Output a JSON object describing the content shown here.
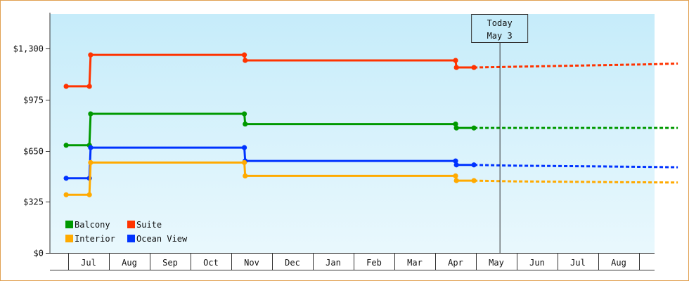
{
  "chart_data": {
    "type": "line",
    "y_axis": {
      "ticks": [
        {
          "value": 0,
          "label": "$0"
        },
        {
          "value": 325,
          "label": "$325"
        },
        {
          "value": 650,
          "label": "$650"
        },
        {
          "value": 975,
          "label": "$975"
        },
        {
          "value": 1300,
          "label": "$1,300"
        }
      ],
      "ylim": [
        0,
        1520
      ]
    },
    "x_axis": {
      "month_labels": [
        "Jul",
        "Aug",
        "Sep",
        "Oct",
        "Nov",
        "Dec",
        "Jan",
        "Feb",
        "Mar",
        "Apr",
        "May",
        "Jun",
        "Jul",
        "Aug"
      ],
      "xlim": [
        0,
        14.45
      ]
    },
    "today_marker": {
      "line1": "Today",
      "line2": "May 3",
      "x": 10.08
    },
    "legend": {
      "placement": "bottom-left"
    },
    "series": [
      {
        "name": "Suite",
        "color": "#ff3300",
        "history": [
          [
            -0.55,
            1060
          ],
          [
            0.02,
            1060
          ],
          [
            0.05,
            1260
          ],
          [
            3.82,
            1260
          ],
          [
            3.84,
            1225
          ],
          [
            9.0,
            1225
          ],
          [
            9.02,
            1180
          ],
          [
            9.45,
            1180
          ]
        ],
        "markers": [
          [
            -0.55,
            1060
          ],
          [
            0.02,
            1060
          ],
          [
            0.05,
            1260
          ],
          [
            3.82,
            1260
          ],
          [
            3.84,
            1225
          ],
          [
            9.0,
            1225
          ],
          [
            9.02,
            1180
          ],
          [
            9.45,
            1180
          ]
        ],
        "forecast": [
          [
            9.45,
            1180
          ],
          [
            10.5,
            1185
          ],
          [
            13.7,
            1200
          ],
          [
            14.45,
            1205
          ]
        ]
      },
      {
        "name": "Balcony",
        "color": "#009900",
        "history": [
          [
            -0.55,
            685
          ],
          [
            0.02,
            685
          ],
          [
            0.05,
            885
          ],
          [
            3.82,
            885
          ],
          [
            3.84,
            820
          ],
          [
            9.0,
            820
          ],
          [
            9.02,
            795
          ],
          [
            9.45,
            795
          ]
        ],
        "markers": [
          [
            -0.55,
            685
          ],
          [
            0.02,
            685
          ],
          [
            0.05,
            885
          ],
          [
            3.82,
            885
          ],
          [
            3.84,
            820
          ],
          [
            9.0,
            820
          ],
          [
            9.02,
            795
          ],
          [
            9.45,
            795
          ]
        ],
        "forecast": [
          [
            9.45,
            795
          ],
          [
            14.45,
            795
          ]
        ]
      },
      {
        "name": "Ocean View",
        "color": "#0033ff",
        "history": [
          [
            -0.55,
            475
          ],
          [
            0.02,
            475
          ],
          [
            0.05,
            670
          ],
          [
            3.82,
            670
          ],
          [
            3.84,
            585
          ],
          [
            9.0,
            585
          ],
          [
            9.02,
            560
          ],
          [
            9.45,
            560
          ]
        ],
        "markers": [
          [
            -0.55,
            475
          ],
          [
            0.02,
            475
          ],
          [
            0.05,
            670
          ],
          [
            3.82,
            670
          ],
          [
            3.84,
            585
          ],
          [
            9.0,
            585
          ],
          [
            9.02,
            560
          ],
          [
            9.45,
            560
          ]
        ],
        "forecast": [
          [
            9.45,
            560
          ],
          [
            10.5,
            555
          ],
          [
            12.7,
            550
          ],
          [
            14.45,
            545
          ]
        ]
      },
      {
        "name": "Interior",
        "color": "#ffaa00",
        "history": [
          [
            -0.55,
            370
          ],
          [
            0.02,
            370
          ],
          [
            0.05,
            575
          ],
          [
            3.82,
            575
          ],
          [
            3.84,
            490
          ],
          [
            9.0,
            490
          ],
          [
            9.02,
            460
          ],
          [
            9.45,
            460
          ]
        ],
        "markers": [
          [
            -0.55,
            370
          ],
          [
            0.02,
            370
          ],
          [
            0.05,
            575
          ],
          [
            3.82,
            575
          ],
          [
            3.84,
            490
          ],
          [
            9.0,
            490
          ],
          [
            9.02,
            460
          ],
          [
            9.45,
            460
          ]
        ],
        "forecast": [
          [
            9.45,
            460
          ],
          [
            10.5,
            455
          ],
          [
            13.0,
            450
          ],
          [
            14.45,
            448
          ]
        ]
      }
    ],
    "legend_rows": [
      [
        {
          "name": "Balcony",
          "color": "#009900"
        },
        {
          "name": "Suite",
          "color": "#ff3300"
        }
      ],
      [
        {
          "name": "Interior",
          "color": "#ffaa00"
        },
        {
          "name": "Ocean View",
          "color": "#0033ff"
        }
      ]
    ]
  }
}
